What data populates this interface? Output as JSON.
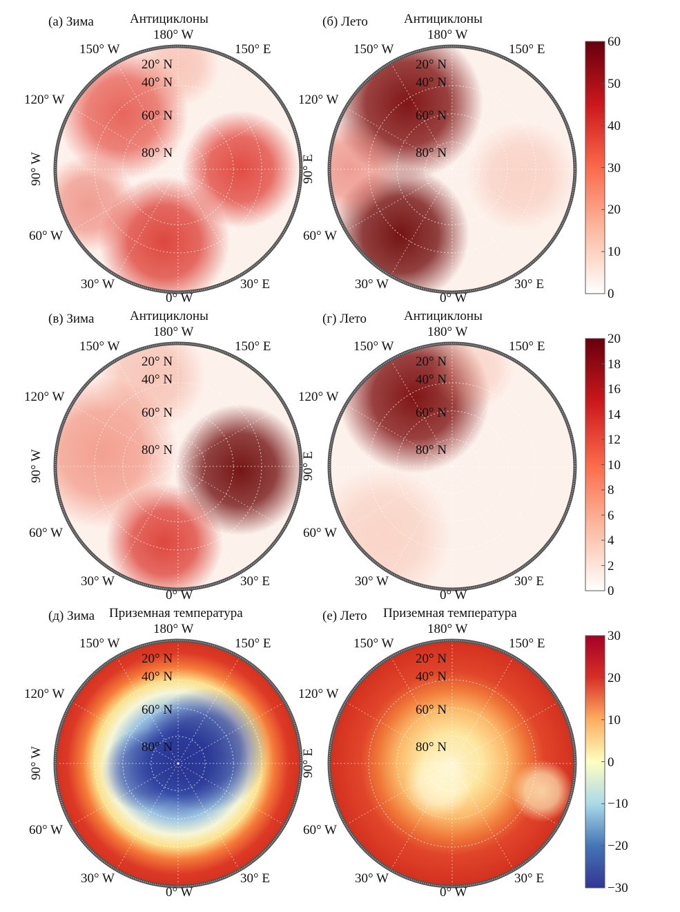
{
  "panels": [
    {
      "label": "(а) Зима",
      "title": "Антициклоны",
      "kind": "anti_winter_a",
      "side_label": "90° W"
    },
    {
      "label": "(б) Лето",
      "title": "Антициклоны",
      "kind": "anti_summer_b",
      "side_label": "90° E"
    },
    {
      "label": "(в) Зима",
      "title": "Антициклоны",
      "kind": "anti_winter_c",
      "side_label": "90° W"
    },
    {
      "label": "(г) Лето",
      "title": "Антициклоны",
      "kind": "anti_summer_d",
      "side_label": "90° E"
    },
    {
      "label": "(д) Зима",
      "title": "Приземная температура",
      "kind": "temp_winter",
      "side_label": "90° W"
    },
    {
      "label": "(е) Лето",
      "title": "Приземная температура",
      "kind": "temp_summer",
      "side_label": "90° E"
    }
  ],
  "lon_labels": {
    "top": "180° W",
    "top_left": "150° W",
    "top_right": "150° E",
    "left_upper": "120° W",
    "left_lower": "60° W",
    "bottom_left": "30° W",
    "bottom_right": "30° E",
    "bottom": "0° W"
  },
  "lat_labels": [
    "20° N",
    "40° N",
    "60° N",
    "80° N"
  ],
  "colorbars": [
    {
      "ticks": [
        "60",
        "50",
        "40",
        "30",
        "20",
        "10",
        "0"
      ],
      "colormap": "Reds",
      "colors": [
        "#ffffff",
        "#fcbba1",
        "#fb6a4a",
        "#cb181d",
        "#67000d"
      ]
    },
    {
      "ticks": [
        "20",
        "18",
        "16",
        "14",
        "12",
        "10",
        "8",
        "6",
        "4",
        "2",
        "0"
      ],
      "colormap": "Reds",
      "colors": [
        "#ffffff",
        "#fcbba1",
        "#fb6a4a",
        "#cb181d",
        "#67000d"
      ]
    },
    {
      "ticks": [
        "30",
        "20",
        "10",
        "0",
        "−10",
        "−20",
        "−30"
      ],
      "colormap": "RdYlBu_r",
      "colors": [
        "#313695",
        "#4575b4",
        "#abd9e9",
        "#ffffbf",
        "#fdae61",
        "#d73027",
        "#a50026"
      ]
    }
  ]
}
